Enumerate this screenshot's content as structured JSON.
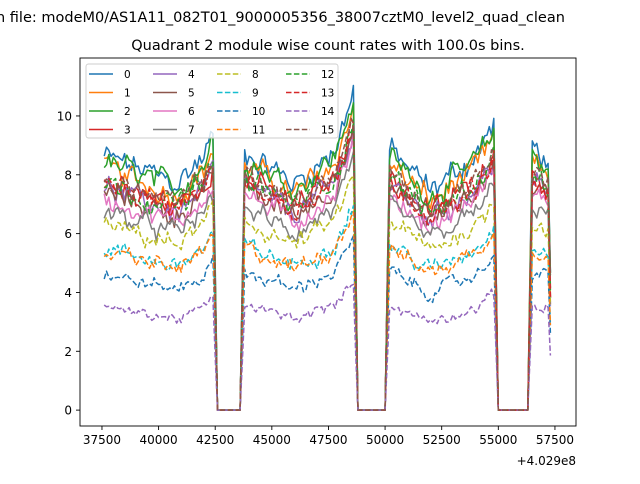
{
  "chart_data": {
    "type": "line",
    "suptitle": "n file: modeM0/AS1A11_082T01_9000005356_38007cztM0_level2_quad_clean",
    "title": "Quadrant 2 module wise count rates with 100.0s bins.",
    "xlabel": "",
    "ylabel": "",
    "x_offset_text": "+4.029e8",
    "xlim": [
      36530,
      58430
    ],
    "ylim": [
      -0.54,
      11.97
    ],
    "x_ticks": [
      37500,
      40000,
      42500,
      45000,
      47500,
      50000,
      52500,
      55000,
      57500
    ],
    "x_tick_labels": [
      "37500",
      "40000",
      "42500",
      "45000",
      "47500",
      "50000",
      "52500",
      "55000",
      "57500"
    ],
    "y_ticks": [
      0,
      2,
      4,
      6,
      8,
      10
    ],
    "y_tick_labels": [
      "0",
      "2",
      "4",
      "6",
      "8",
      "10"
    ],
    "x_start": 37600,
    "x_end": 57300,
    "x_step": 100,
    "shared_profile": [
      [
        37600,
        1.12
      ],
      [
        38200,
        1.1
      ],
      [
        40800,
        1.0
      ],
      [
        42000,
        1.12
      ],
      [
        42400,
        1.22
      ],
      [
        42600,
        0
      ],
      [
        43600,
        0
      ],
      [
        43800,
        1.15
      ],
      [
        44500,
        1.1
      ],
      [
        46000,
        1.0
      ],
      [
        47800,
        1.15
      ],
      [
        48600,
        1.42
      ],
      [
        48800,
        0
      ],
      [
        50000,
        0
      ],
      [
        50200,
        1.15
      ],
      [
        52000,
        0.97
      ],
      [
        54000,
        1.12
      ],
      [
        54800,
        1.26
      ],
      [
        55000,
        0
      ],
      [
        56300,
        0
      ],
      [
        56500,
        1.16
      ],
      [
        57200,
        1.1
      ],
      [
        57300,
        0.6
      ]
    ],
    "legend_position": "upper-left",
    "legend_columns": 4,
    "series": [
      {
        "name": "0",
        "level": 7.7,
        "color": "#1f77b4",
        "style": "solid"
      },
      {
        "name": "1",
        "level": 7.3,
        "color": "#ff7f0e",
        "style": "solid"
      },
      {
        "name": "2",
        "level": 7.5,
        "color": "#2ca02c",
        "style": "solid"
      },
      {
        "name": "3",
        "level": 6.9,
        "color": "#d62728",
        "style": "solid"
      },
      {
        "name": "4",
        "level": 6.7,
        "color": "#9467bd",
        "style": "solid"
      },
      {
        "name": "5",
        "level": 6.6,
        "color": "#8c564b",
        "style": "solid"
      },
      {
        "name": "6",
        "level": 6.4,
        "color": "#e377c2",
        "style": "solid"
      },
      {
        "name": "7",
        "level": 6.0,
        "color": "#7f7f7f",
        "style": "solid"
      },
      {
        "name": "8",
        "level": 5.6,
        "color": "#bcbd22",
        "style": "dashed"
      },
      {
        "name": "9",
        "level": 4.9,
        "color": "#17becf",
        "style": "dashed"
      },
      {
        "name": "10",
        "level": 4.1,
        "color": "#1f77b4",
        "style": "dashed"
      },
      {
        "name": "11",
        "level": 4.8,
        "color": "#ff7f0e",
        "style": "dashed"
      },
      {
        "name": "12",
        "level": 6.9,
        "color": "#2ca02c",
        "style": "dashed"
      },
      {
        "name": "13",
        "level": 6.8,
        "color": "#d62728",
        "style": "dashed"
      },
      {
        "name": "14",
        "level": 3.1,
        "color": "#9467bd",
        "style": "dashed"
      },
      {
        "name": "15",
        "level": 7.0,
        "color": "#8c564b",
        "style": "dashed"
      }
    ]
  }
}
